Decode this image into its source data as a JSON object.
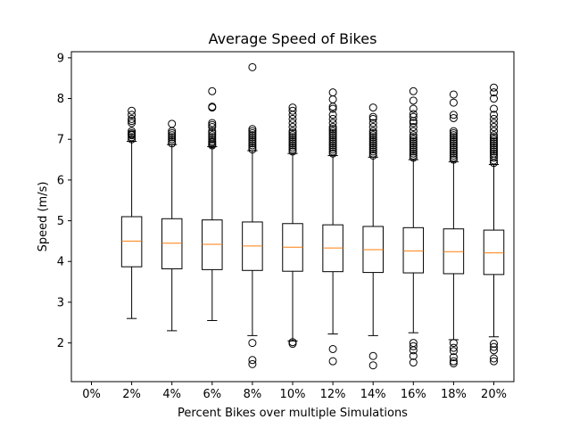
{
  "chart_data": {
    "type": "box",
    "title": "Average Speed of Bikes",
    "xlabel": "Percent Bikes over multiple Simulations",
    "ylabel": "Speed (m/s)",
    "categories": [
      "0%",
      "2%",
      "4%",
      "6%",
      "8%",
      "10%",
      "12%",
      "14%",
      "16%",
      "18%",
      "20%"
    ],
    "yticks": [
      2,
      3,
      4,
      5,
      6,
      7,
      8,
      9
    ],
    "ylim": [
      1.05,
      9.15
    ],
    "grid": false,
    "legend": "none",
    "colors": {
      "box": "#000000",
      "median": "#ff7f0e",
      "flier": "#000000"
    },
    "boxes": [
      {
        "category": "0%",
        "empty": true
      },
      {
        "category": "2%",
        "whisker_low": 2.6,
        "q1": 3.87,
        "median": 4.5,
        "q3": 5.1,
        "whisker_high": 6.95,
        "fliers": [
          7.0,
          7.05,
          7.1,
          7.12,
          7.15,
          7.2,
          7.4,
          7.45,
          7.5,
          7.6,
          7.7
        ]
      },
      {
        "category": "4%",
        "whisker_low": 2.3,
        "q1": 3.82,
        "median": 4.45,
        "q3": 5.05,
        "whisker_high": 6.87,
        "fliers": [
          6.9,
          6.95,
          7.0,
          7.05,
          7.1,
          7.15,
          7.2,
          7.38
        ]
      },
      {
        "category": "6%",
        "whisker_low": 2.55,
        "q1": 3.8,
        "median": 4.42,
        "q3": 5.02,
        "whisker_high": 6.82,
        "fliers": [
          6.85,
          6.88,
          6.92,
          6.95,
          7.0,
          7.05,
          7.1,
          7.15,
          7.2,
          7.3,
          7.35,
          7.4,
          7.78,
          7.8,
          8.18
        ]
      },
      {
        "category": "8%",
        "whisker_low": 2.18,
        "q1": 3.78,
        "median": 4.38,
        "q3": 4.97,
        "whisker_high": 6.72,
        "fliers": [
          1.48,
          1.58,
          2.0,
          6.75,
          6.8,
          6.85,
          6.9,
          6.95,
          7.0,
          7.05,
          7.1,
          7.15,
          7.2,
          7.25,
          8.77
        ]
      },
      {
        "category": "10%",
        "whisker_low": 2.05,
        "q1": 3.76,
        "median": 4.35,
        "q3": 4.93,
        "whisker_high": 6.65,
        "fliers": [
          1.98,
          2.02,
          6.7,
          6.75,
          6.8,
          6.85,
          6.9,
          6.95,
          7.0,
          7.05,
          7.1,
          7.15,
          7.2,
          7.3,
          7.4,
          7.5,
          7.6,
          7.7,
          7.78
        ]
      },
      {
        "category": "12%",
        "whisker_low": 2.22,
        "q1": 3.75,
        "median": 4.33,
        "q3": 4.9,
        "whisker_high": 6.6,
        "fliers": [
          1.55,
          1.85,
          6.65,
          6.7,
          6.75,
          6.8,
          6.85,
          6.9,
          6.95,
          7.0,
          7.05,
          7.1,
          7.15,
          7.2,
          7.25,
          7.3,
          7.4,
          7.5,
          7.6,
          7.75,
          7.8,
          7.98,
          8.15
        ]
      },
      {
        "category": "14%",
        "whisker_low": 2.18,
        "q1": 3.73,
        "median": 4.29,
        "q3": 4.86,
        "whisker_high": 6.56,
        "fliers": [
          1.45,
          1.68,
          6.6,
          6.65,
          6.7,
          6.75,
          6.8,
          6.85,
          6.9,
          6.95,
          7.0,
          7.05,
          7.1,
          7.15,
          7.2,
          7.3,
          7.4,
          7.5,
          7.55,
          7.78
        ]
      },
      {
        "category": "16%",
        "whisker_low": 2.25,
        "q1": 3.72,
        "median": 4.26,
        "q3": 4.83,
        "whisker_high": 6.5,
        "fliers": [
          1.52,
          1.68,
          1.82,
          1.92,
          2.0,
          6.55,
          6.6,
          6.65,
          6.7,
          6.75,
          6.8,
          6.85,
          6.9,
          6.95,
          7.0,
          7.05,
          7.1,
          7.2,
          7.3,
          7.4,
          7.45,
          7.55,
          7.62,
          7.75,
          7.95,
          8.18
        ]
      },
      {
        "category": "18%",
        "whisker_low": 2.08,
        "q1": 3.7,
        "median": 4.24,
        "q3": 4.8,
        "whisker_high": 6.45,
        "fliers": [
          1.5,
          1.55,
          1.65,
          1.8,
          1.88,
          2.0,
          6.5,
          6.55,
          6.6,
          6.65,
          6.7,
          6.75,
          6.8,
          6.85,
          6.9,
          6.95,
          7.0,
          7.05,
          7.1,
          7.15,
          7.2,
          7.52,
          7.6,
          7.9,
          8.1
        ]
      },
      {
        "category": "20%",
        "whisker_low": 2.15,
        "q1": 3.68,
        "median": 4.21,
        "q3": 4.77,
        "whisker_high": 6.38,
        "fliers": [
          1.55,
          1.62,
          1.82,
          1.9,
          1.98,
          6.42,
          6.48,
          6.55,
          6.6,
          6.65,
          6.7,
          6.75,
          6.8,
          6.85,
          6.9,
          6.95,
          7.0,
          7.05,
          7.1,
          7.2,
          7.3,
          7.4,
          7.5,
          7.6,
          7.75,
          8.0,
          8.15,
          8.27
        ]
      }
    ]
  }
}
